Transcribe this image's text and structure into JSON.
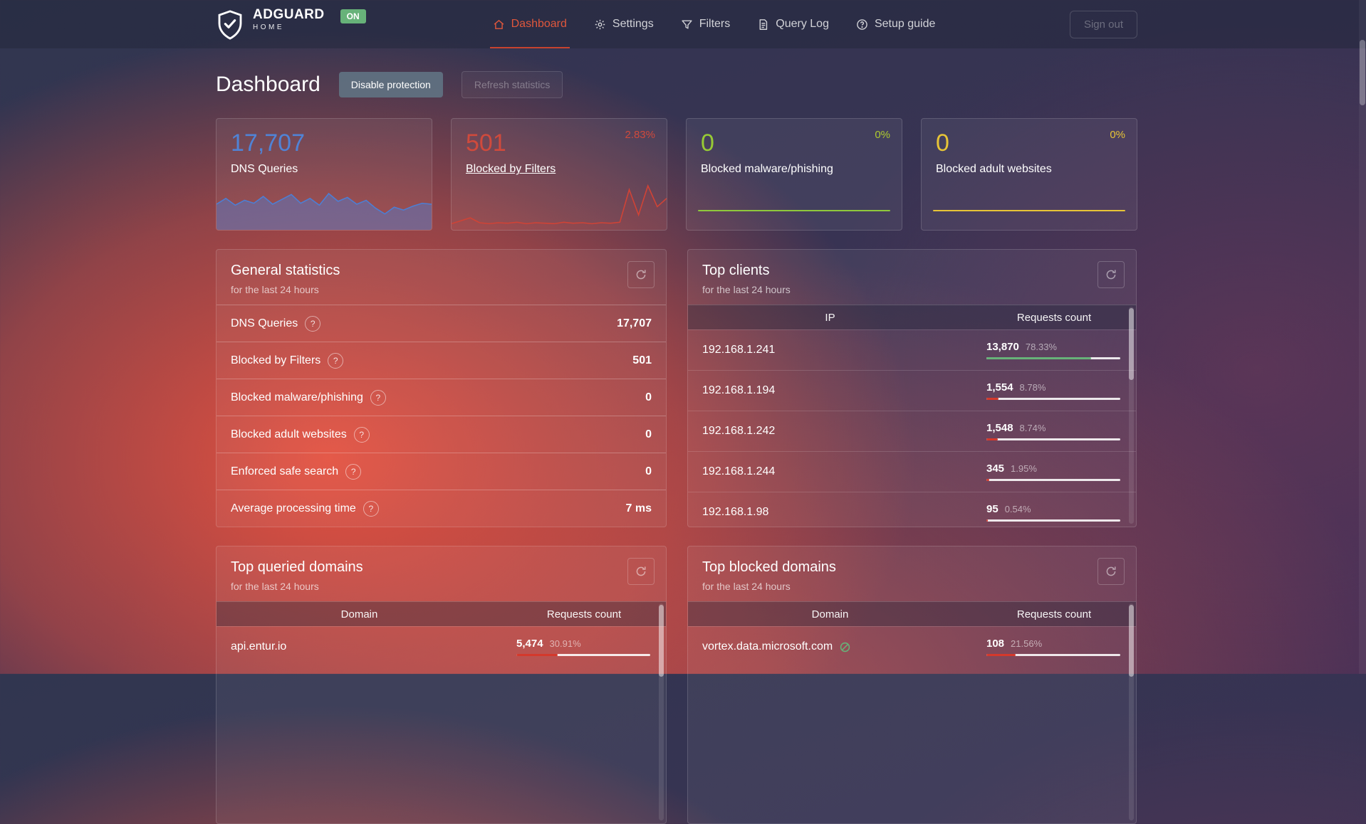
{
  "brand": {
    "name": "ADGUARD",
    "sub": "HOME",
    "status": "ON"
  },
  "nav": {
    "items": [
      {
        "label": "Dashboard",
        "icon": "home-icon",
        "active": true
      },
      {
        "label": "Settings",
        "icon": "gear-icon",
        "active": false
      },
      {
        "label": "Filters",
        "icon": "funnel-icon",
        "active": false
      },
      {
        "label": "Query Log",
        "icon": "document-icon",
        "active": false
      },
      {
        "label": "Setup guide",
        "icon": "question-circle-icon",
        "active": false
      }
    ],
    "sign_out": "Sign out"
  },
  "page": {
    "title": "Dashboard",
    "disable_button": "Disable protection",
    "refresh_button": "Refresh statistics"
  },
  "colors": {
    "accent_active": "#e0573c",
    "green": "#67b279",
    "red_bar": "#d4392c"
  },
  "stat_cards": [
    {
      "value": "17,707",
      "label": "DNS Queries",
      "percent": "",
      "value_color": "#5083d6",
      "percent_color": "#5083d6",
      "spark_color": "#4d7ed3",
      "spark_fill": 0.45,
      "spark": [
        0.5,
        0.62,
        0.48,
        0.58,
        0.52,
        0.66,
        0.5,
        0.6,
        0.7,
        0.52,
        0.62,
        0.48,
        0.72,
        0.56,
        0.64,
        0.5,
        0.58,
        0.42,
        0.3,
        0.44,
        0.38,
        0.46,
        0.52,
        0.5
      ]
    },
    {
      "value": "501",
      "label": "Blocked by Filters",
      "percent": "2.83%",
      "value_color": "#d04a3c",
      "percent_color": "#d04a3c",
      "spark_color": "#cf4336",
      "spark_fill": 0.12,
      "spark": [
        0.1,
        0.16,
        0.22,
        0.12,
        0.1,
        0.12,
        0.11,
        0.13,
        0.1,
        0.12,
        0.11,
        0.1,
        0.13,
        0.11,
        0.12,
        0.1,
        0.12,
        0.11,
        0.13,
        0.8,
        0.28,
        0.88,
        0.45,
        0.62
      ]
    },
    {
      "value": "0",
      "label": "Blocked malware/phishing",
      "percent": "0%",
      "value_color": "#97ca35",
      "percent_color": "#aeca2f",
      "flat_color": "#8fc83c"
    },
    {
      "value": "0",
      "label": "Blocked adult websites",
      "percent": "0%",
      "value_color": "#e7c437",
      "percent_color": "#e7c437",
      "flat_color": "#e7c437"
    }
  ],
  "general_stats": {
    "title": "General statistics",
    "subtitle": "for the last 24 hours",
    "rows": [
      {
        "label": "DNS Queries",
        "value": "17,707"
      },
      {
        "label": "Blocked by Filters",
        "value": "501"
      },
      {
        "label": "Blocked malware/phishing",
        "value": "0"
      },
      {
        "label": "Blocked adult websites",
        "value": "0"
      },
      {
        "label": "Enforced safe search",
        "value": "0"
      },
      {
        "label": "Average processing time",
        "value": "7 ms"
      }
    ]
  },
  "top_clients": {
    "title": "Top clients",
    "subtitle": "for the last 24 hours",
    "columns": [
      "IP",
      "Requests count"
    ],
    "rows": [
      {
        "ip": "192.168.1.241",
        "count": "13,870",
        "percent": "78.33%",
        "bar": 78.33,
        "bar_color": "#67b279"
      },
      {
        "ip": "192.168.1.194",
        "count": "1,554",
        "percent": "8.78%",
        "bar": 8.78,
        "bar_color": "#d4392c"
      },
      {
        "ip": "192.168.1.242",
        "count": "1,548",
        "percent": "8.74%",
        "bar": 8.74,
        "bar_color": "#d4392c"
      },
      {
        "ip": "192.168.1.244",
        "count": "345",
        "percent": "1.95%",
        "bar": 1.95,
        "bar_color": "#d4392c"
      },
      {
        "ip": "192.168.1.98",
        "count": "95",
        "percent": "0.54%",
        "bar": 0.54,
        "bar_color": "#d4392c"
      }
    ]
  },
  "top_queried": {
    "title": "Top queried domains",
    "subtitle": "for the last 24 hours",
    "columns": [
      "Domain",
      "Requests count"
    ],
    "rows": [
      {
        "domain": "api.entur.io",
        "count": "5,474",
        "percent": "30.91%",
        "bar": 30.91,
        "bar_color": "#d4392c"
      }
    ]
  },
  "top_blocked": {
    "title": "Top blocked domains",
    "subtitle": "for the last 24 hours",
    "columns": [
      "Domain",
      "Requests count"
    ],
    "rows": [
      {
        "domain": "vortex.data.microsoft.com",
        "count": "108",
        "percent": "21.56%",
        "bar": 21.56,
        "bar_color": "#d4392c",
        "status_icon": "blocked-status-icon"
      }
    ]
  }
}
